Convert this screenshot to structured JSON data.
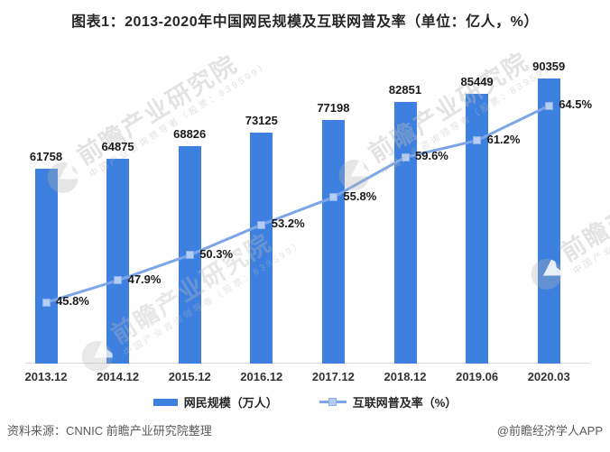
{
  "title": "图表1：2013-2020年中国网民规模及互联网普及率（单位：亿人，%）",
  "chart_data": {
    "type": "bar+line",
    "title": "图表1：2013-2020年中国网民规模及互联网普及率（单位：亿人，%）",
    "categories": [
      "2013.12",
      "2014.12",
      "2015.12",
      "2016.12",
      "2017.12",
      "2018.12",
      "2019.06",
      "2020.03"
    ],
    "series": [
      {
        "name": "网民规模（万人）",
        "type": "bar",
        "axis": "primary",
        "values": [
          61758,
          64875,
          68826,
          73125,
          77198,
          82851,
          85449,
          90359
        ],
        "labels": [
          "61758",
          "64875",
          "68826",
          "73125",
          "77198",
          "82851",
          "85449",
          "90359"
        ]
      },
      {
        "name": "互联网普及率（%）",
        "type": "line",
        "axis": "secondary",
        "values": [
          45.8,
          47.9,
          50.3,
          53.2,
          55.8,
          59.6,
          61.2,
          64.5
        ],
        "labels": [
          "45.8%",
          "47.9%",
          "50.3%",
          "53.2%",
          "55.8%",
          "59.6%",
          "61.2%",
          "64.5%"
        ]
      }
    ],
    "xlabel": "",
    "ylabel": "",
    "primary_axis": {
      "min": 0,
      "max": 100000,
      "visible": false
    },
    "secondary_axis": {
      "min": 40,
      "max": 70,
      "visible": false
    },
    "grid": false,
    "legend_position": "bottom",
    "data_labels": true
  },
  "watermark": {
    "brand": "前瞻产业研究院",
    "tagline": "中国产业咨询领导者（股票：839599）"
  },
  "footer": {
    "source": "资料来源：CNNIC  前瞻产业研究院整理",
    "credit": "@前瞻经济学人APP"
  },
  "colors": {
    "bar": "#3E80E0",
    "line": "#7DA6E8",
    "marker_fill": "#B5CDF1",
    "marker_border": "#89AEE9",
    "axis_line": "#D9D9D9",
    "label_text": "#1a1a1a",
    "footer_text": "#595959"
  }
}
